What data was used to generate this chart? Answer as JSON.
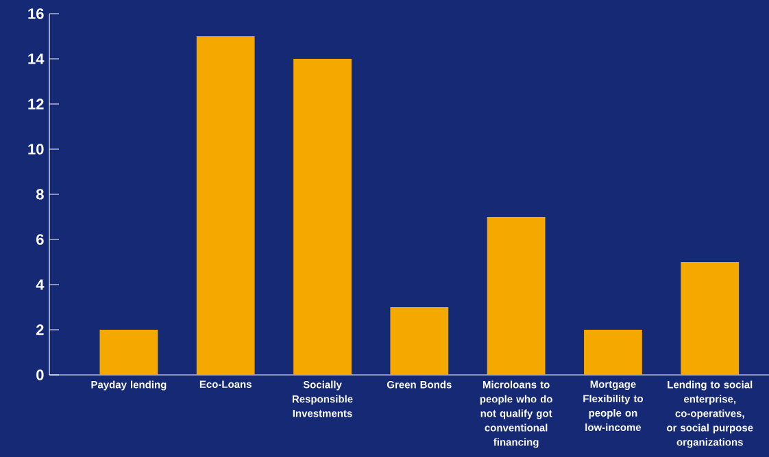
{
  "chart_data": {
    "type": "bar",
    "categories": [
      "Payday lending",
      "Eco-Loans",
      "Socially Responsible Investments",
      "Green Bonds",
      "Microloans to people who do not qualify got conventional financing",
      "Mortgage Flexibility to people on low-income",
      "Lending to social enterprise, co-operatives, or social purpose organizations"
    ],
    "values": [
      2,
      15,
      14,
      3,
      7,
      2,
      5
    ],
    "color": "#f5a800",
    "ylim": [
      0,
      16
    ],
    "yticks": [
      0,
      2,
      4,
      6,
      8,
      10,
      12,
      14,
      16
    ]
  }
}
